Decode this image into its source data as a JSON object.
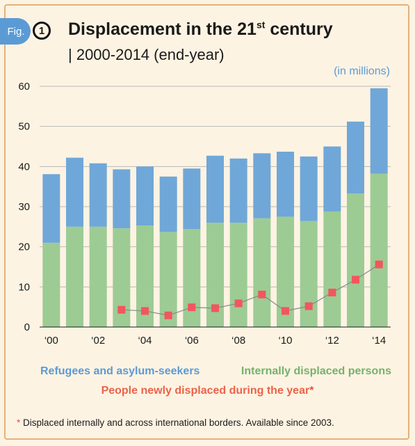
{
  "header": {
    "fig_label": "Fig.",
    "fig_number": "1",
    "title_main": "Displacement in the 21",
    "title_sup": "st",
    "title_end": " century",
    "subtitle": "| 2000-2014 (end-year)",
    "unit": "(in millions)"
  },
  "colors": {
    "refugees": "#6fa7d8",
    "idps": "#9dcb94",
    "new": "#f2565e",
    "grid": "#b8b8b8",
    "line": "#888888"
  },
  "legend": {
    "refugees": "Refugees and asylum-seekers",
    "idps": "Internally displaced persons",
    "new": "People newly displaced during the year",
    "new_mark": "*"
  },
  "footnote": {
    "mark": "*",
    "text": " Displaced internally and across international borders. Available since 2003."
  },
  "chart_data": {
    "type": "bar",
    "stacked": true,
    "title": "Displacement in the 21st century",
    "subtitle": "2000-2014 (end-year)",
    "ylabel": "(in millions)",
    "ylim": [
      0,
      60
    ],
    "yticks": [
      0,
      10,
      20,
      30,
      40,
      50,
      60
    ],
    "grid": true,
    "x": [
      2000,
      2001,
      2002,
      2003,
      2004,
      2005,
      2006,
      2007,
      2008,
      2009,
      2010,
      2011,
      2012,
      2013,
      2014
    ],
    "xtick_labels": [
      "‘00",
      "",
      "‘02",
      "",
      "‘04",
      "",
      "‘06",
      "",
      "‘08",
      "",
      "‘10",
      "",
      "‘12",
      "",
      "‘14"
    ],
    "series": [
      {
        "name": "Internally displaced persons",
        "values": [
          21.0,
          25.0,
          25.0,
          24.6,
          25.3,
          23.7,
          24.4,
          26.0,
          26.0,
          27.1,
          27.5,
          26.4,
          28.8,
          33.3,
          38.2
        ]
      },
      {
        "name": "Refugees and asylum-seekers",
        "values": [
          17.1,
          17.2,
          15.8,
          14.7,
          14.7,
          13.8,
          15.1,
          16.7,
          16.0,
          16.2,
          16.2,
          16.1,
          16.2,
          17.9,
          21.3
        ]
      }
    ],
    "overlay": {
      "type": "line-scatter",
      "name": "People newly displaced during the year",
      "x": [
        2003,
        2004,
        2005,
        2006,
        2007,
        2008,
        2009,
        2010,
        2011,
        2012,
        2013,
        2014
      ],
      "values": [
        4.3,
        4.0,
        2.9,
        4.9,
        4.7,
        5.9,
        8.1,
        4.0,
        5.2,
        8.6,
        11.8,
        15.6
      ]
    }
  }
}
